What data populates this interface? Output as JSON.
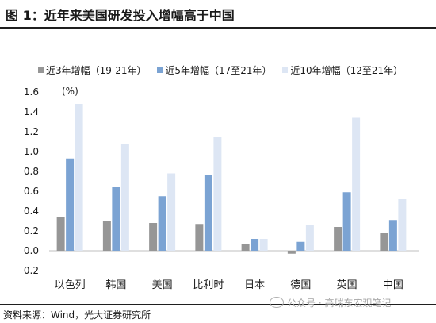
{
  "figure": {
    "title": "图 1：近年来美国研发投入增幅高于中国",
    "source": "资料来源：Wind，光大证券研究所",
    "watermark": "公众号 · 高瑞东宏观笔记"
  },
  "chart_data": {
    "type": "bar",
    "unit_label": "(%)",
    "categories": [
      "以色列",
      "韩国",
      "美国",
      "比利时",
      "日本",
      "德国",
      "英国",
      "中国"
    ],
    "series": [
      {
        "name": "近3年增幅（19-21年）",
        "color": "#969696",
        "values": [
          0.34,
          0.3,
          0.28,
          0.27,
          0.07,
          -0.03,
          0.24,
          0.18
        ]
      },
      {
        "name": "近5年增幅（17至21年）",
        "color": "#7ba3d3",
        "values": [
          0.93,
          0.64,
          0.55,
          0.76,
          0.12,
          0.09,
          0.59,
          0.31
        ]
      },
      {
        "name": "近10年增幅（12至21年）",
        "color": "#dde6f4",
        "values": [
          1.48,
          1.08,
          0.78,
          1.15,
          0.12,
          0.26,
          1.34,
          0.52
        ]
      }
    ],
    "ylim": [
      -0.2,
      1.6
    ],
    "yticks": [
      "-0.2",
      "0.0",
      "0.2",
      "0.4",
      "0.6",
      "0.8",
      "1.0",
      "1.2",
      "1.4",
      "1.6"
    ],
    "legend_position": "top",
    "grid": false
  }
}
